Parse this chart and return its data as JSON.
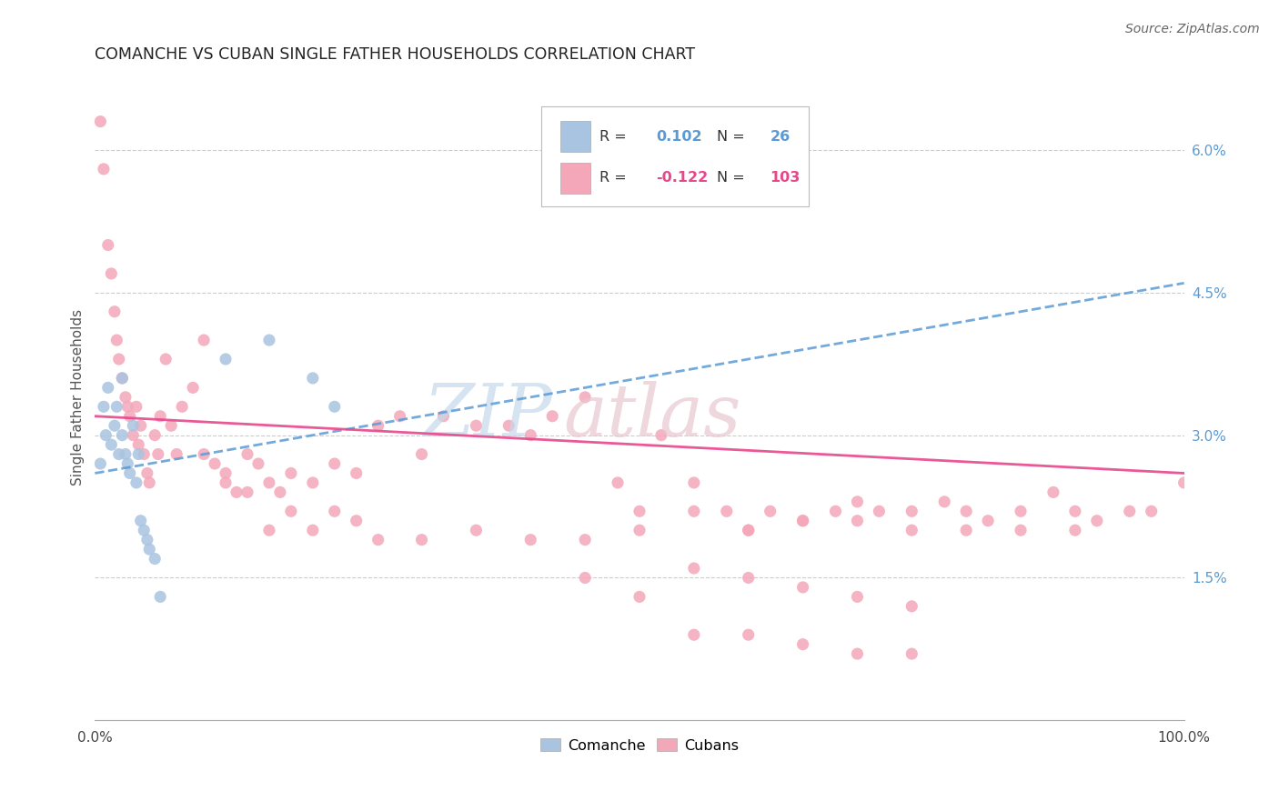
{
  "title": "COMANCHE VS CUBAN SINGLE FATHER HOUSEHOLDS CORRELATION CHART",
  "source": "Source: ZipAtlas.com",
  "ylabel": "Single Father Households",
  "xlim": [
    0,
    1.0
  ],
  "ylim": [
    0,
    0.068
  ],
  "yticks_right": [
    0.015,
    0.03,
    0.045,
    0.06
  ],
  "ytick_labels_right": [
    "1.5%",
    "3.0%",
    "4.5%",
    "6.0%"
  ],
  "comanche_color": "#a8c4e0",
  "cuban_color": "#f4a7b9",
  "comanche_line_color": "#5b9bd5",
  "cuban_line_color": "#e8478c",
  "legend_R_comanche": "0.102",
  "legend_N_comanche": "26",
  "legend_R_cuban": "-0.122",
  "legend_N_cuban": "103",
  "comanche_x": [
    0.005,
    0.008,
    0.01,
    0.012,
    0.015,
    0.018,
    0.02,
    0.022,
    0.025,
    0.025,
    0.028,
    0.03,
    0.032,
    0.035,
    0.038,
    0.04,
    0.042,
    0.045,
    0.048,
    0.05,
    0.055,
    0.06,
    0.12,
    0.16,
    0.2,
    0.22
  ],
  "comanche_y": [
    0.027,
    0.033,
    0.03,
    0.035,
    0.029,
    0.031,
    0.033,
    0.028,
    0.036,
    0.03,
    0.028,
    0.027,
    0.026,
    0.031,
    0.025,
    0.028,
    0.021,
    0.02,
    0.019,
    0.018,
    0.017,
    0.013,
    0.038,
    0.04,
    0.036,
    0.033
  ],
  "cuban_x": [
    0.005,
    0.008,
    0.012,
    0.015,
    0.018,
    0.02,
    0.022,
    0.025,
    0.028,
    0.03,
    0.032,
    0.035,
    0.038,
    0.04,
    0.042,
    0.045,
    0.048,
    0.05,
    0.055,
    0.058,
    0.06,
    0.065,
    0.07,
    0.075,
    0.08,
    0.09,
    0.1,
    0.11,
    0.12,
    0.13,
    0.14,
    0.15,
    0.16,
    0.17,
    0.18,
    0.2,
    0.22,
    0.24,
    0.26,
    0.28,
    0.3,
    0.32,
    0.35,
    0.38,
    0.4,
    0.42,
    0.45,
    0.48,
    0.5,
    0.52,
    0.55,
    0.58,
    0.6,
    0.62,
    0.65,
    0.68,
    0.7,
    0.72,
    0.75,
    0.78,
    0.8,
    0.82,
    0.85,
    0.88,
    0.9,
    0.92,
    0.95,
    0.97,
    1.0,
    0.1,
    0.12,
    0.14,
    0.16,
    0.18,
    0.2,
    0.22,
    0.24,
    0.26,
    0.3,
    0.35,
    0.4,
    0.45,
    0.5,
    0.55,
    0.6,
    0.65,
    0.7,
    0.75,
    0.8,
    0.85,
    0.9,
    0.45,
    0.5,
    0.55,
    0.6,
    0.65,
    0.7,
    0.75,
    0.55,
    0.6,
    0.65,
    0.7,
    0.75
  ],
  "cuban_y": [
    0.063,
    0.058,
    0.05,
    0.047,
    0.043,
    0.04,
    0.038,
    0.036,
    0.034,
    0.033,
    0.032,
    0.03,
    0.033,
    0.029,
    0.031,
    0.028,
    0.026,
    0.025,
    0.03,
    0.028,
    0.032,
    0.038,
    0.031,
    0.028,
    0.033,
    0.035,
    0.028,
    0.027,
    0.025,
    0.024,
    0.028,
    0.027,
    0.025,
    0.024,
    0.026,
    0.025,
    0.027,
    0.026,
    0.031,
    0.032,
    0.028,
    0.032,
    0.031,
    0.031,
    0.03,
    0.032,
    0.034,
    0.025,
    0.022,
    0.03,
    0.025,
    0.022,
    0.02,
    0.022,
    0.021,
    0.022,
    0.023,
    0.022,
    0.022,
    0.023,
    0.022,
    0.021,
    0.022,
    0.024,
    0.022,
    0.021,
    0.022,
    0.022,
    0.025,
    0.04,
    0.026,
    0.024,
    0.02,
    0.022,
    0.02,
    0.022,
    0.021,
    0.019,
    0.019,
    0.02,
    0.019,
    0.019,
    0.02,
    0.022,
    0.02,
    0.021,
    0.021,
    0.02,
    0.02,
    0.02,
    0.02,
    0.015,
    0.013,
    0.009,
    0.009,
    0.008,
    0.007,
    0.007,
    0.016,
    0.015,
    0.014,
    0.013,
    0.012
  ],
  "trend_comanche_x0": 0.0,
  "trend_comanche_y0": 0.026,
  "trend_comanche_x1": 1.0,
  "trend_comanche_y1": 0.046,
  "trend_cuban_x0": 0.0,
  "trend_cuban_y0": 0.032,
  "trend_cuban_x1": 1.0,
  "trend_cuban_y1": 0.026
}
